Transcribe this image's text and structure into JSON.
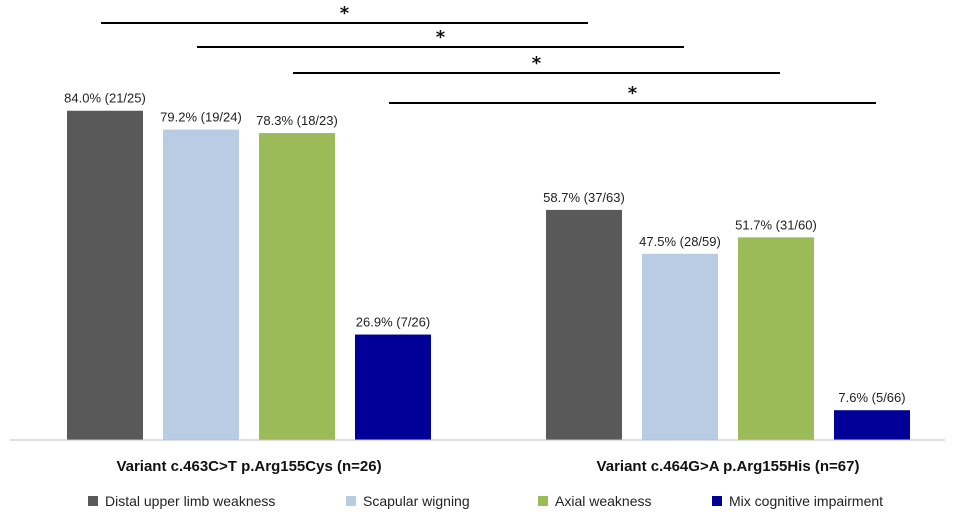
{
  "chart_data": {
    "type": "bar",
    "categories": [
      "Variant c.463C>T p.Arg155Cys (n=26)",
      "Variant c.464G>A p.Arg155His (n=67)"
    ],
    "ylim": [
      0,
      100
    ],
    "grid": false,
    "legend_position": "bottom",
    "series": [
      {
        "name": "Distal upper limb weakness",
        "color": "#595959",
        "values": [
          84.0,
          58.7
        ],
        "labels": [
          "84.0% (21/25)",
          "58.7% (37/63)"
        ]
      },
      {
        "name": "Scapular wigning",
        "color": "#b8cce4",
        "values": [
          79.2,
          47.5
        ],
        "labels": [
          "79.2% (19/24)",
          "47.5% (28/59)"
        ]
      },
      {
        "name": "Axial weakness",
        "color": "#9bbb59",
        "values": [
          78.3,
          51.7
        ],
        "labels": [
          "78.3% (18/23)",
          "51.7% (31/60)"
        ]
      },
      {
        "name": "Mix cognitive impairment",
        "color": "#000099",
        "values": [
          26.9,
          7.6
        ],
        "labels": [
          "26.9% (7/26)",
          "7.6% (5/66)"
        ]
      }
    ],
    "significance": [
      {
        "series_index": 0,
        "label": "*"
      },
      {
        "series_index": 1,
        "label": "*"
      },
      {
        "series_index": 2,
        "label": "*"
      },
      {
        "series_index": 3,
        "label": "*"
      }
    ]
  }
}
